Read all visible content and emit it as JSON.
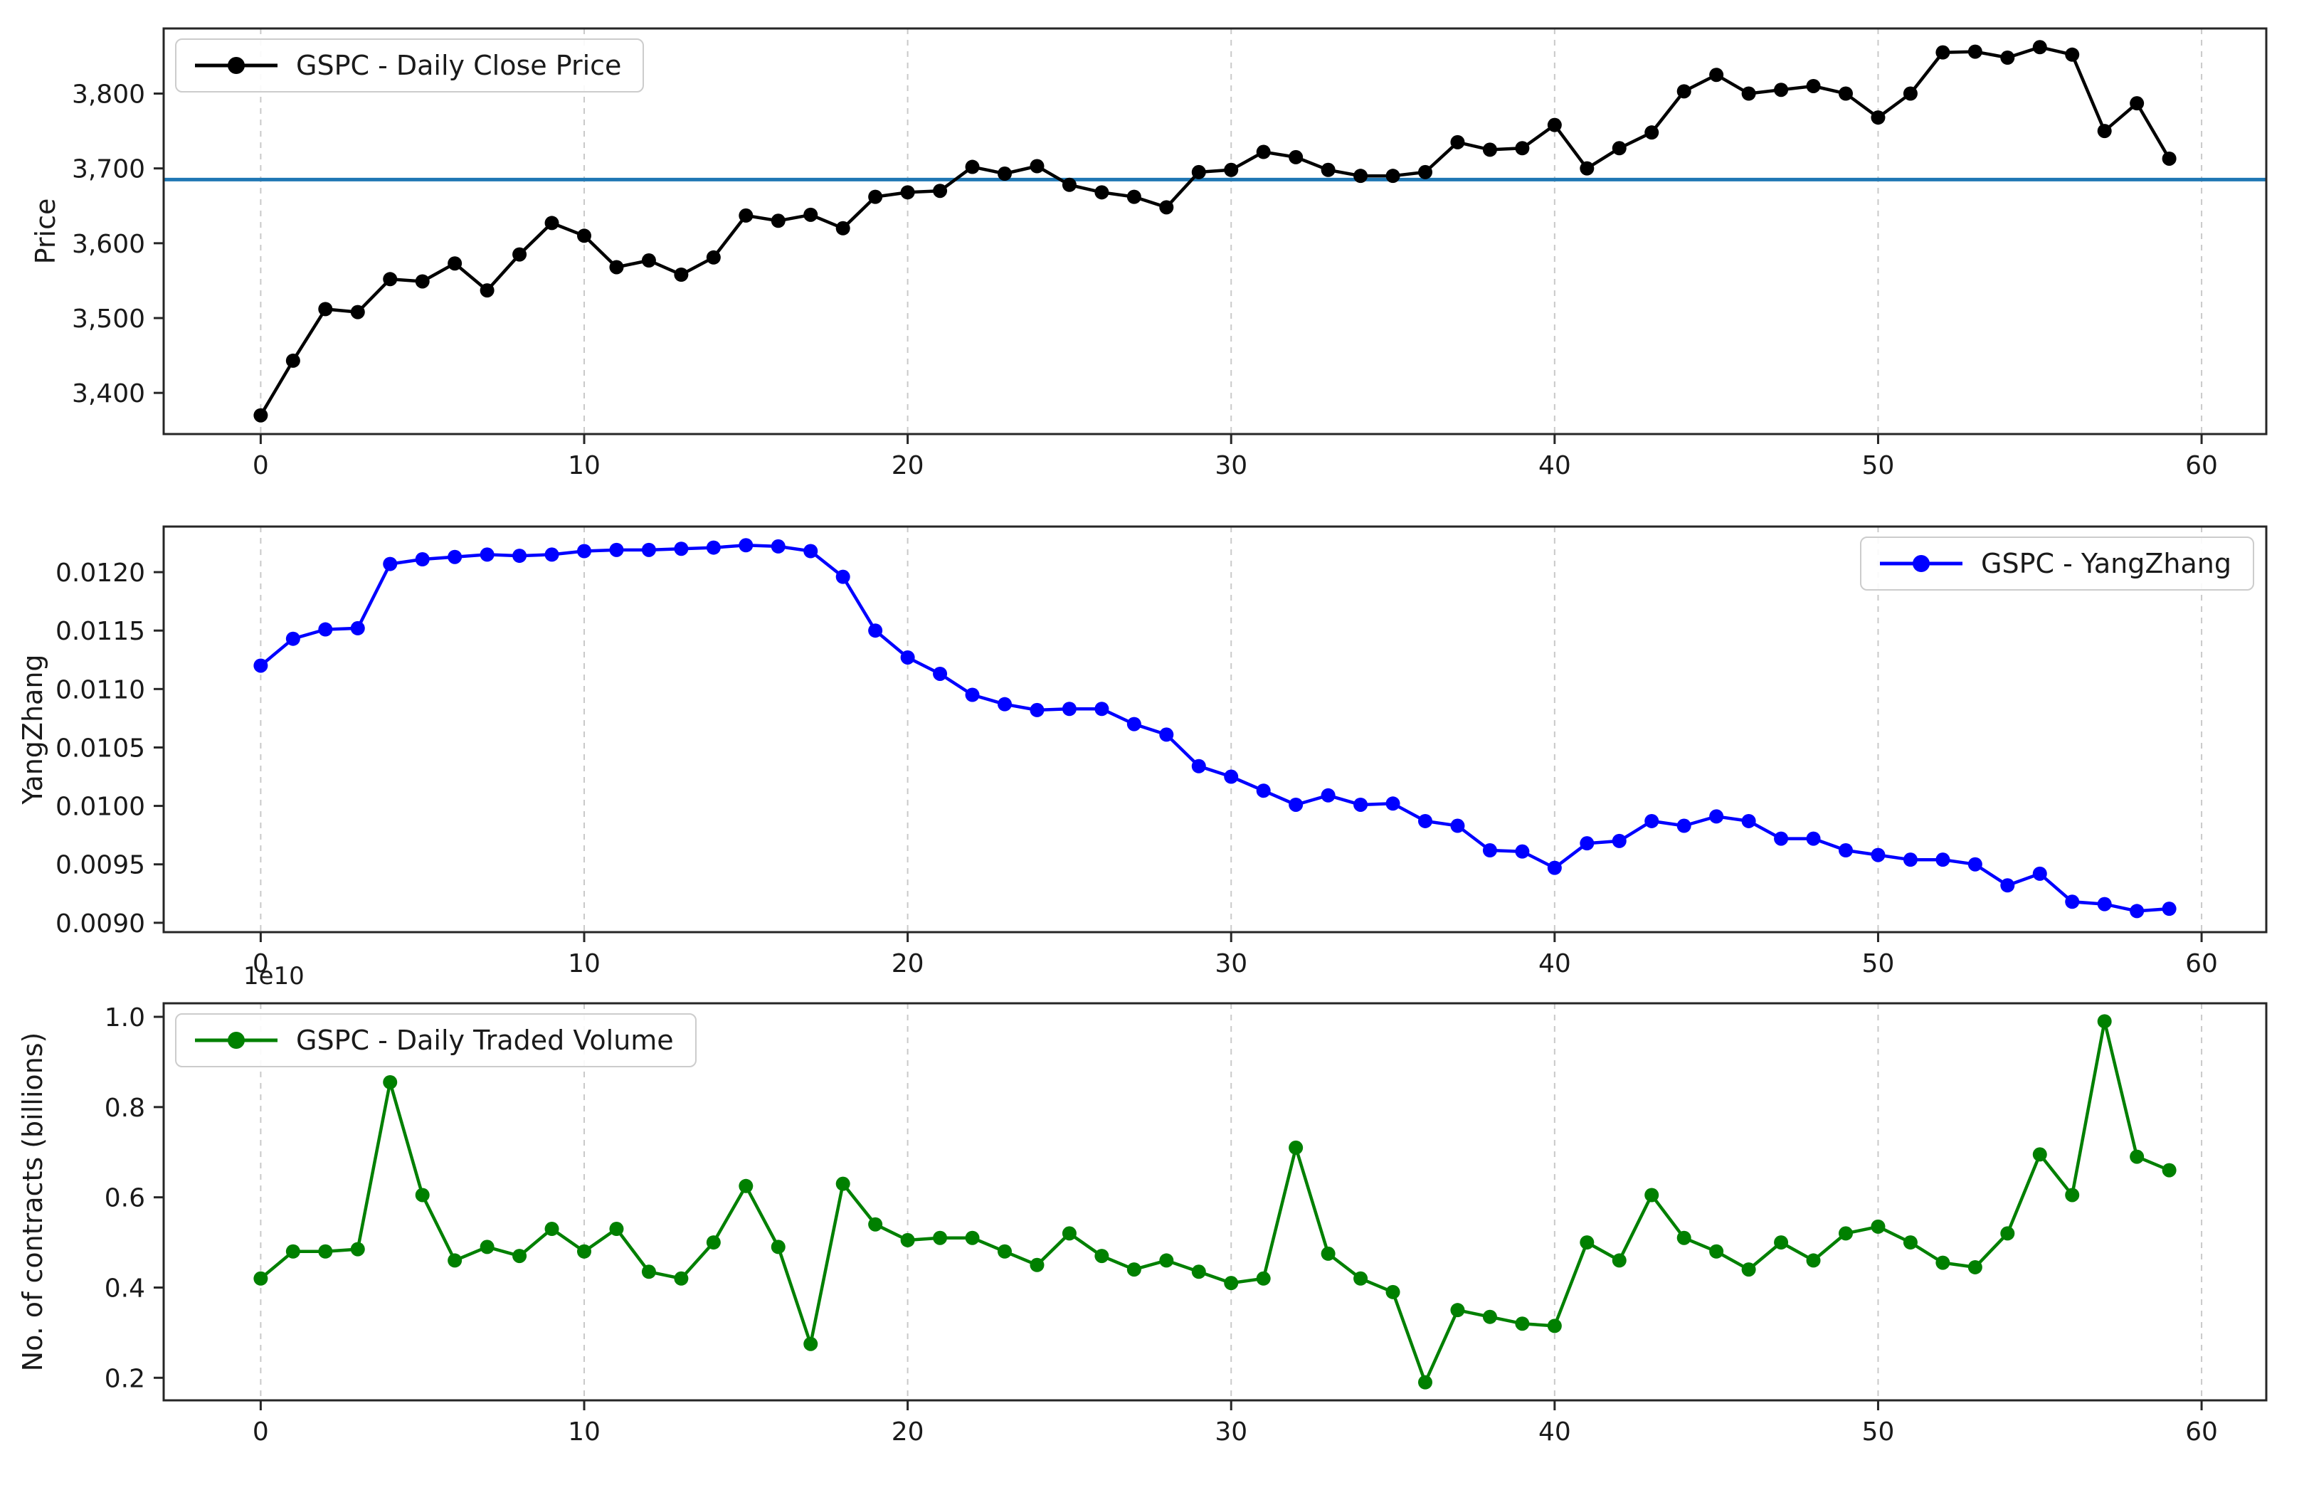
{
  "figure": {
    "background": "#ffffff",
    "text_color": "#1a1a1a",
    "grid_style": "vertical-dashed-light-gray"
  },
  "chart_data": [
    {
      "type": "line",
      "legend": "GSPC - Daily Close Price",
      "legend_position": "upper-left",
      "ylabel": "Price",
      "color": "#000000",
      "marker": "circle",
      "x_description": "integer day index 0-59 (one point per trading day)",
      "values": [
        3370,
        3443,
        3512,
        3508,
        3552,
        3549,
        3573,
        3537,
        3585,
        3627,
        3610,
        3568,
        3577,
        3558,
        3581,
        3637,
        3630,
        3638,
        3620,
        3662,
        3668,
        3670,
        3702,
        3693,
        3703,
        3678,
        3668,
        3662,
        3648,
        3695,
        3698,
        3722,
        3715,
        3698,
        3690,
        3690,
        3695,
        3735,
        3725,
        3727,
        3758,
        3700,
        3727,
        3748,
        3803,
        3825,
        3800,
        3805,
        3810,
        3800,
        3768,
        3800,
        3855,
        3856,
        3848,
        3862,
        3852,
        3750,
        3787,
        3713
      ],
      "hline": {
        "y": 3685,
        "color": "#1f77b4",
        "meaning": "horizontal reference line"
      },
      "xlim": [
        -3,
        62
      ],
      "ylim": [
        3345,
        3887
      ],
      "xticks": [
        0,
        10,
        20,
        30,
        40,
        50,
        60
      ],
      "xtick_labels": [
        "0",
        "10",
        "20",
        "30",
        "40",
        "50",
        "60"
      ],
      "yticks": [
        3400,
        3500,
        3600,
        3700,
        3800
      ],
      "ytick_labels": [
        "3,400",
        "3,500",
        "3,600",
        "3,700",
        "3,800"
      ]
    },
    {
      "type": "line",
      "legend": "GSPC - YangZhang",
      "legend_position": "upper-right",
      "ylabel": "YangZhang",
      "color": "#0000ff",
      "marker": "circle",
      "x_description": "integer day index 0-59 (one point per trading day)",
      "values": [
        0.0112,
        0.01143,
        0.01151,
        0.01152,
        0.01207,
        0.01211,
        0.01213,
        0.01215,
        0.01214,
        0.01215,
        0.01218,
        0.01219,
        0.01219,
        0.0122,
        0.01221,
        0.01223,
        0.01222,
        0.01218,
        0.01196,
        0.0115,
        0.01127,
        0.01113,
        0.01095,
        0.01087,
        0.01082,
        0.01083,
        0.01083,
        0.0107,
        0.01061,
        0.01034,
        0.01025,
        0.01013,
        0.01001,
        0.01009,
        0.01001,
        0.01002,
        0.00987,
        0.00983,
        0.00962,
        0.00961,
        0.00947,
        0.00968,
        0.0097,
        0.00987,
        0.00983,
        0.00991,
        0.00987,
        0.00972,
        0.00972,
        0.00962,
        0.00958,
        0.00954,
        0.00954,
        0.0095,
        0.00932,
        0.00942,
        0.00918,
        0.00916,
        0.0091,
        0.00912
      ],
      "xlim": [
        -3,
        62
      ],
      "ylim": [
        0.00892,
        0.01239
      ],
      "xticks": [
        0,
        10,
        20,
        30,
        40,
        50,
        60
      ],
      "xtick_labels": [
        "0",
        "10",
        "20",
        "30",
        "40",
        "50",
        "60"
      ],
      "yticks": [
        0.009,
        0.0095,
        0.01,
        0.0105,
        0.011,
        0.0115,
        0.012
      ],
      "ytick_labels": [
        "0.0090",
        "0.0095",
        "0.0100",
        "0.0105",
        "0.0110",
        "0.0115",
        "0.0120"
      ]
    },
    {
      "type": "line",
      "legend": "GSPC - Daily Traded Volume",
      "legend_position": "upper-left",
      "ylabel": "No. of contracts (billions)",
      "offset_text": "1e10",
      "unit_multiplier": 10000000000.0,
      "color": "#008000",
      "marker": "circle",
      "x_description": "integer day index 0-59 (one point per trading day)",
      "values": [
        0.42,
        0.48,
        0.48,
        0.485,
        0.855,
        0.605,
        0.46,
        0.49,
        0.47,
        0.53,
        0.48,
        0.53,
        0.435,
        0.42,
        0.5,
        0.625,
        0.49,
        0.275,
        0.63,
        0.54,
        0.505,
        0.51,
        0.51,
        0.48,
        0.45,
        0.52,
        0.47,
        0.44,
        0.46,
        0.435,
        0.41,
        0.42,
        0.71,
        0.475,
        0.42,
        0.39,
        0.19,
        0.35,
        0.335,
        0.32,
        0.315,
        0.5,
        0.46,
        0.605,
        0.51,
        0.48,
        0.44,
        0.5,
        0.46,
        0.52,
        0.535,
        0.5,
        0.455,
        0.445,
        0.52,
        0.695,
        0.605,
        0.99,
        0.69,
        0.66
      ],
      "xlim": [
        -3,
        62
      ],
      "ylim": [
        0.15,
        1.03
      ],
      "xticks": [
        0,
        10,
        20,
        30,
        40,
        50,
        60
      ],
      "xtick_labels": [
        "0",
        "10",
        "20",
        "30",
        "40",
        "50",
        "60"
      ],
      "yticks": [
        0.2,
        0.4,
        0.6,
        0.8,
        1.0
      ],
      "ytick_labels": [
        "0.2",
        "0.4",
        "0.6",
        "0.8",
        "1.0"
      ]
    }
  ]
}
